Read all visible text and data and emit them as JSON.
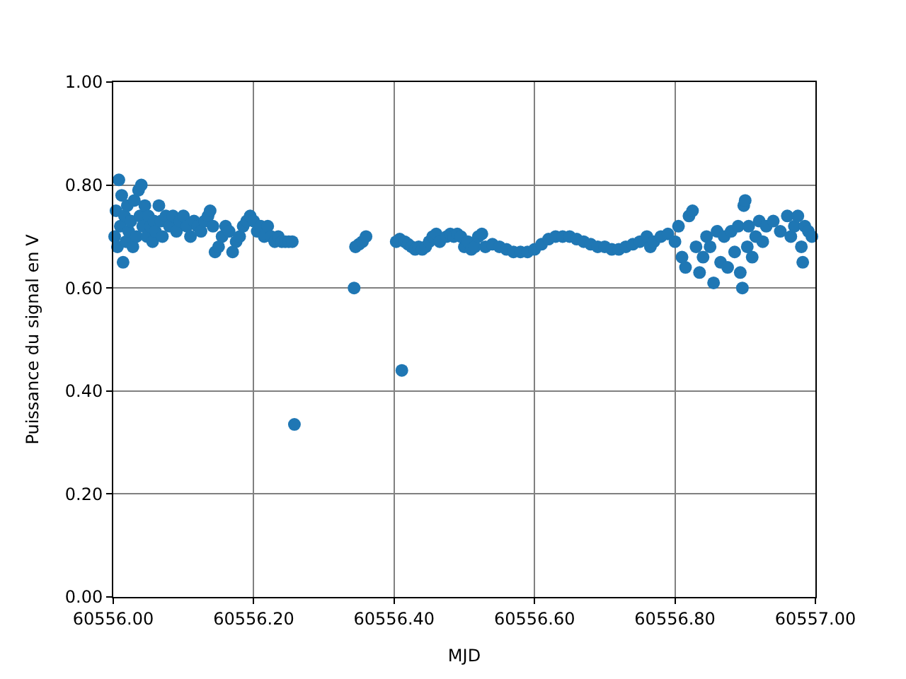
{
  "chart_data": {
    "type": "scatter",
    "xlabel": "MJD",
    "ylabel": "Puissance du signal en V",
    "xlim": [
      60556.0,
      60557.0
    ],
    "xticks": [
      {
        "value": 60556.0,
        "label": "60556.00"
      },
      {
        "value": 60556.2,
        "label": "60556.20"
      },
      {
        "value": 60556.4,
        "label": "60556.40"
      },
      {
        "value": 60556.6,
        "label": "60556.60"
      },
      {
        "value": 60556.8,
        "label": "60556.80"
      },
      {
        "value": 60557.0,
        "label": "60557.00"
      }
    ],
    "ylim": [
      0,
      1
    ],
    "yticks": [
      {
        "value": 0,
        "label": "0.00"
      },
      {
        "value": 0.2,
        "label": "0.20"
      },
      {
        "value": 0.4,
        "label": "0.40"
      },
      {
        "value": 0.6,
        "label": "0.60"
      },
      {
        "value": 0.8,
        "label": "0.80"
      },
      {
        "value": 1,
        "label": "1.00"
      }
    ],
    "grid": true,
    "marker": "circle",
    "series": [
      {
        "color": "#1f77b4",
        "x": [
          60556.002,
          60556.004,
          60556.006,
          60556.008,
          60556.01,
          60556.012,
          60556.014,
          60556.016,
          60556.018,
          60556.02,
          60556.022,
          60556.025,
          60556.028,
          60556.03,
          60556.033,
          60556.036,
          60556.038,
          60556.04,
          60556.042,
          60556.045,
          60556.048,
          60556.05,
          60556.053,
          60556.056,
          60556.058,
          60556.06,
          60556.065,
          60556.068,
          60556.07,
          60556.075,
          60556.08,
          60556.085,
          60556.09,
          60556.095,
          60556.1,
          60556.105,
          60556.11,
          60556.115,
          60556.12,
          60556.125,
          60556.13,
          60556.135,
          60556.138,
          60556.142,
          60556.145,
          60556.15,
          60556.155,
          60556.16,
          60556.165,
          60556.17,
          60556.175,
          60556.18,
          60556.185,
          60556.19,
          60556.195,
          60556.2,
          60556.205,
          60556.21,
          60556.215,
          60556.22,
          60556.225,
          60556.23,
          60556.235,
          60556.24,
          60556.245,
          60556.25,
          60556.255,
          60556.258,
          60556.343,
          60556.345,
          60556.35,
          60556.355,
          60556.36,
          60556.403,
          60556.408,
          60556.411,
          60556.415,
          60556.42,
          60556.425,
          60556.43,
          60556.435,
          60556.44,
          60556.445,
          60556.45,
          60556.455,
          60556.46,
          60556.465,
          60556.475,
          60556.48,
          60556.485,
          60556.49,
          60556.495,
          60556.5,
          60556.505,
          60556.51,
          60556.515,
          60556.52,
          60556.525,
          60556.53,
          60556.54,
          60556.55,
          60556.56,
          60556.57,
          60556.58,
          60556.59,
          60556.6,
          60556.61,
          60556.62,
          60556.63,
          60556.64,
          60556.65,
          60556.66,
          60556.67,
          60556.68,
          60556.69,
          60556.7,
          60556.71,
          60556.72,
          60556.73,
          60556.74,
          60556.75,
          60556.76,
          60556.765,
          60556.77,
          60556.78,
          60556.79,
          60556.8,
          60556.805,
          60556.81,
          60556.815,
          60556.82,
          60556.825,
          60556.83,
          60556.835,
          60556.84,
          60556.845,
          60556.85,
          60556.855,
          60556.86,
          60556.865,
          60556.87,
          60556.875,
          60556.88,
          60556.885,
          60556.89,
          60556.893,
          60556.896,
          60556.898,
          60556.9,
          60556.903,
          60556.905,
          60556.91,
          60556.915,
          60556.92,
          60556.925,
          60556.93,
          60556.94,
          60556.95,
          60556.96,
          60556.965,
          60556.97,
          60556.975,
          60556.98,
          60556.982,
          60556.985,
          60556.99,
          60556.995
        ],
        "values": [
          0.7,
          0.75,
          0.68,
          0.81,
          0.72,
          0.78,
          0.65,
          0.74,
          0.69,
          0.76,
          0.71,
          0.73,
          0.68,
          0.77,
          0.7,
          0.79,
          0.74,
          0.8,
          0.72,
          0.76,
          0.7,
          0.74,
          0.72,
          0.69,
          0.73,
          0.71,
          0.76,
          0.73,
          0.7,
          0.74,
          0.72,
          0.74,
          0.71,
          0.73,
          0.74,
          0.72,
          0.7,
          0.73,
          0.72,
          0.71,
          0.73,
          0.74,
          0.75,
          0.72,
          0.67,
          0.68,
          0.7,
          0.72,
          0.71,
          0.67,
          0.69,
          0.7,
          0.72,
          0.73,
          0.74,
          0.73,
          0.71,
          0.72,
          0.7,
          0.72,
          0.7,
          0.69,
          0.7,
          0.69,
          0.69,
          0.69,
          0.69,
          0.335,
          0.6,
          0.68,
          0.685,
          0.69,
          0.7,
          0.69,
          0.695,
          0.44,
          0.69,
          0.685,
          0.68,
          0.675,
          0.68,
          0.675,
          0.68,
          0.69,
          0.7,
          0.705,
          0.69,
          0.7,
          0.705,
          0.7,
          0.705,
          0.7,
          0.68,
          0.69,
          0.675,
          0.68,
          0.7,
          0.705,
          0.68,
          0.685,
          0.68,
          0.675,
          0.67,
          0.67,
          0.67,
          0.675,
          0.685,
          0.695,
          0.7,
          0.7,
          0.7,
          0.695,
          0.69,
          0.685,
          0.68,
          0.68,
          0.675,
          0.675,
          0.68,
          0.685,
          0.69,
          0.7,
          0.68,
          0.69,
          0.7,
          0.705,
          0.69,
          0.72,
          0.66,
          0.64,
          0.74,
          0.75,
          0.68,
          0.63,
          0.66,
          0.7,
          0.68,
          0.61,
          0.71,
          0.65,
          0.7,
          0.64,
          0.71,
          0.67,
          0.72,
          0.63,
          0.6,
          0.76,
          0.77,
          0.68,
          0.72,
          0.66,
          0.7,
          0.73,
          0.69,
          0.72,
          0.73,
          0.71,
          0.74,
          0.7,
          0.72,
          0.74,
          0.68,
          0.65,
          0.72,
          0.71,
          0.7
        ]
      }
    ]
  }
}
